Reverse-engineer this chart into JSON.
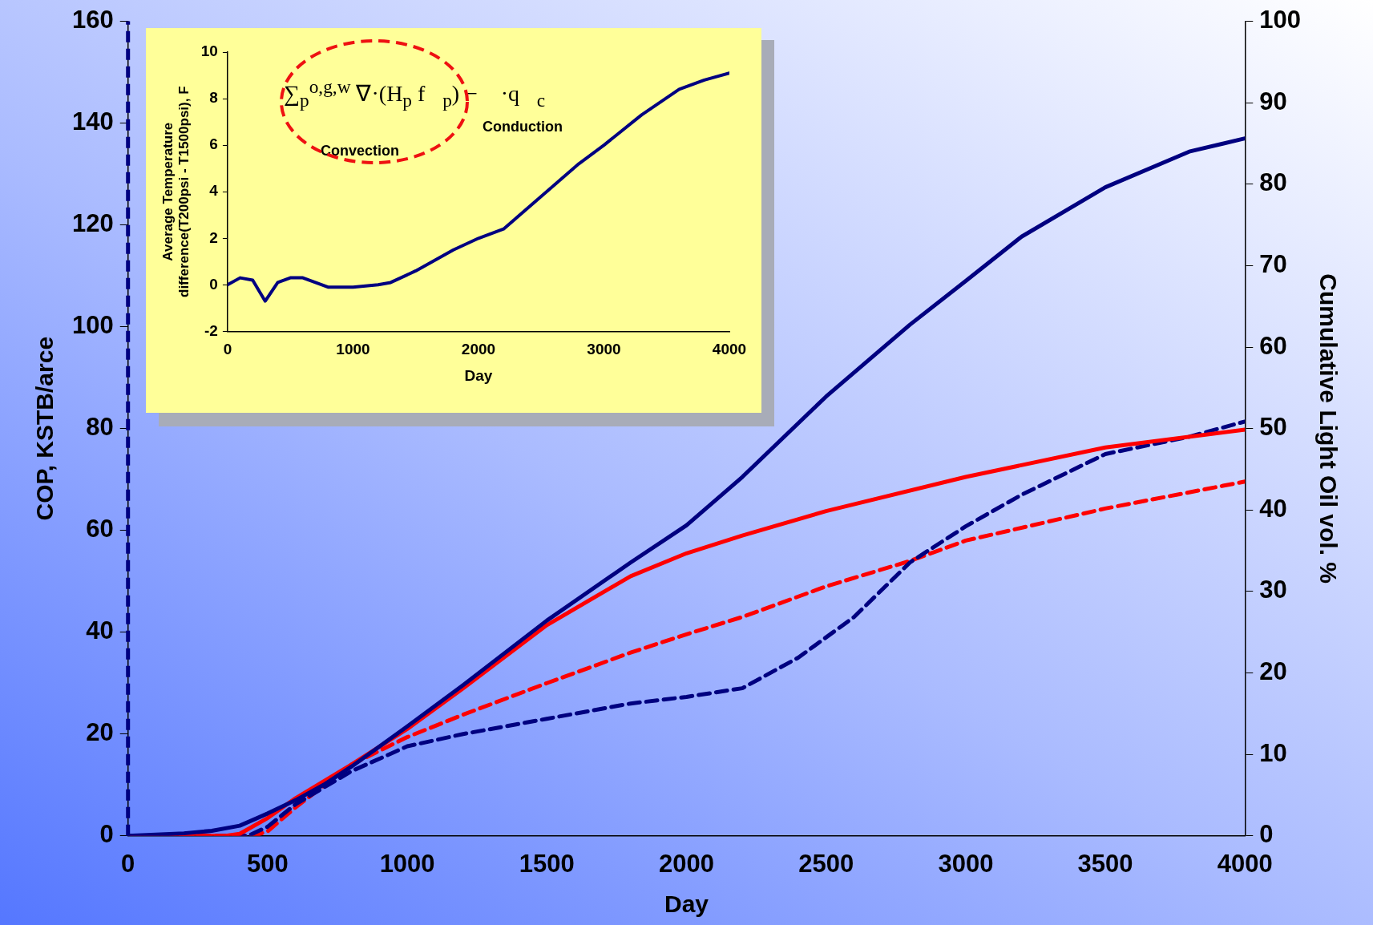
{
  "chart_data": [
    {
      "type": "line",
      "xlabel": "Day",
      "ylabel": "COP, KSTB/arce",
      "y2label": "Cumulative Light Oil vol. %",
      "xlim": [
        0,
        4000
      ],
      "xticks": [
        0,
        500,
        1000,
        1500,
        2000,
        2500,
        3000,
        3500,
        4000
      ],
      "ylim": [
        0,
        160
      ],
      "yticks": [
        0,
        20,
        40,
        60,
        80,
        100,
        120,
        140,
        160
      ],
      "y2lim": [
        0,
        100
      ],
      "y2ticks": [
        0,
        10,
        20,
        30,
        40,
        50,
        60,
        70,
        80,
        90,
        100
      ],
      "grid": false,
      "legend": false,
      "marker": "none",
      "ref_lines": [
        {
          "axis": "x",
          "value": 0,
          "color": "#000080",
          "line_style": "dashed"
        }
      ],
      "series": [
        {
          "color": "#000080",
          "line_style": "solid",
          "x": [
            0,
            200,
            300,
            400,
            500,
            600,
            700,
            800,
            1000,
            1200,
            1500,
            1800,
            2000,
            2200,
            2500,
            2800,
            3000,
            3200,
            3500,
            3800,
            4000
          ],
          "values": [
            0,
            0.5,
            1,
            2,
            4.4,
            7,
            10,
            13.6,
            21.5,
            29.6,
            42.3,
            53.7,
            61,
            70.5,
            86.3,
            100.4,
            109,
            117.7,
            127.4,
            134.4,
            137
          ]
        },
        {
          "color": "#ff0000",
          "line_style": "solid",
          "x": [
            0,
            350,
            400,
            500,
            600,
            800,
            1000,
            1200,
            1500,
            1800,
            2000,
            2200,
            2500,
            3000,
            3500,
            4000
          ],
          "values": [
            0,
            0,
            0.4,
            3.5,
            7.4,
            14,
            21,
            29,
            41.4,
            51,
            55.5,
            59,
            63.8,
            70.5,
            76.3,
            79.8
          ]
        },
        {
          "color": "#000080",
          "line_style": "dashed",
          "x": [
            0,
            430,
            500,
            600,
            800,
            1000,
            1200,
            1500,
            1800,
            2000,
            2200,
            2400,
            2600,
            2800,
            3000,
            3200,
            3500,
            3800,
            4000
          ],
          "values": [
            0,
            0,
            1.8,
            6.2,
            12.7,
            17.6,
            20,
            23,
            26,
            27.3,
            29,
            35,
            43,
            53.7,
            60.8,
            67,
            75,
            78.4,
            81.4
          ]
        },
        {
          "color": "#ff0000",
          "line_style": "dashed",
          "x": [
            0,
            450,
            500,
            600,
            800,
            1000,
            1200,
            1500,
            1800,
            2000,
            2200,
            2500,
            2800,
            3000,
            3500,
            4000
          ],
          "values": [
            0,
            0,
            0.9,
            5.6,
            14,
            19.4,
            23.8,
            30,
            36,
            39.6,
            43,
            49,
            54,
            58,
            64.3,
            69.6
          ]
        }
      ]
    },
    {
      "type": "line",
      "xlabel": "Day",
      "ylabel": "Average Temperature difference(T200psi - T1500psi), F",
      "xlim": [
        0,
        4000
      ],
      "xticks": [
        0,
        1000,
        2000,
        3000,
        4000
      ],
      "ylim": [
        -2,
        10
      ],
      "yticks": [
        -2,
        0,
        2,
        4,
        6,
        8,
        10
      ],
      "grid": false,
      "legend": false,
      "marker": "none",
      "annotations": [
        "∑$_{p}$$^{o,g,w}$ ∇·(H$_{p}$ f⃗$_{p}$) − ∇·q⃗$_{c}$",
        "Convection",
        "Conduction"
      ],
      "series": [
        {
          "color": "#000080",
          "line_style": "solid",
          "x": [
            0,
            100,
            200,
            300,
            400,
            500,
            600,
            700,
            800,
            1000,
            1200,
            1300,
            1500,
            1800,
            2000,
            2200,
            2500,
            2800,
            3000,
            3300,
            3600,
            3800,
            4000
          ],
          "values": [
            0,
            0.3,
            0.2,
            -0.7,
            0.1,
            0.3,
            0.3,
            0.1,
            -0.1,
            -0.1,
            0,
            0.1,
            0.6,
            1.5,
            2,
            2.4,
            3.8,
            5.2,
            6,
            7.3,
            8.4,
            8.8,
            9.1
          ]
        }
      ]
    }
  ]
}
